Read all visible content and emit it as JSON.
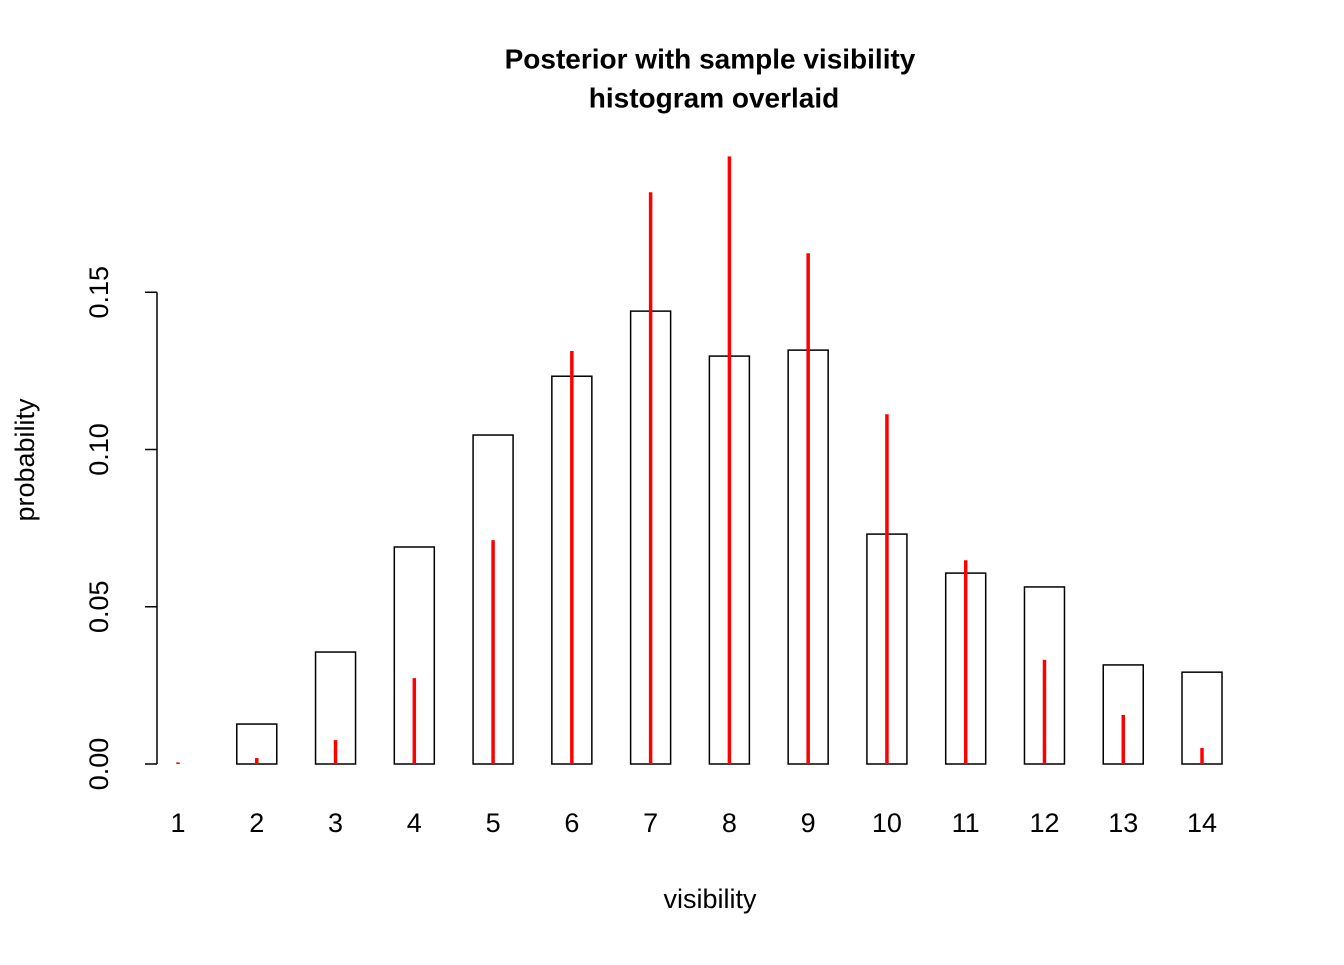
{
  "chart_data": {
    "type": "bar",
    "title": [
      "Posterior with sample visibility",
      "histogram overlaid"
    ],
    "x_label": "visibility",
    "y_label": "probability",
    "categories": [
      "1",
      "2",
      "3",
      "4",
      "5",
      "6",
      "7",
      "8",
      "9",
      "10",
      "11",
      "12",
      "13",
      "14"
    ],
    "series": [
      {
        "type": "bar",
        "color": "#000000",
        "fill": "#ffffff",
        "values": [
          0.0,
          0.0127,
          0.0356,
          0.069,
          0.1046,
          0.1233,
          0.144,
          0.1297,
          0.1316,
          0.0731,
          0.0607,
          0.0563,
          0.0315,
          0.0292
        ]
      },
      {
        "type": "line",
        "color": "#ff0000",
        "values": [
          0.0005,
          0.0019,
          0.0076,
          0.0273,
          0.0712,
          0.1313,
          0.1818,
          0.1932,
          0.1624,
          0.1112,
          0.0648,
          0.0331,
          0.0156,
          0.0051
        ]
      }
    ],
    "ylim": [
      0,
      0.2
    ],
    "yticks": [
      {
        "value": 0,
        "label": "0.00"
      },
      {
        "value": 0.05,
        "label": "0.05"
      },
      {
        "value": 0.1,
        "label": "0.10"
      },
      {
        "value": 0.15,
        "label": "0.15"
      }
    ]
  }
}
